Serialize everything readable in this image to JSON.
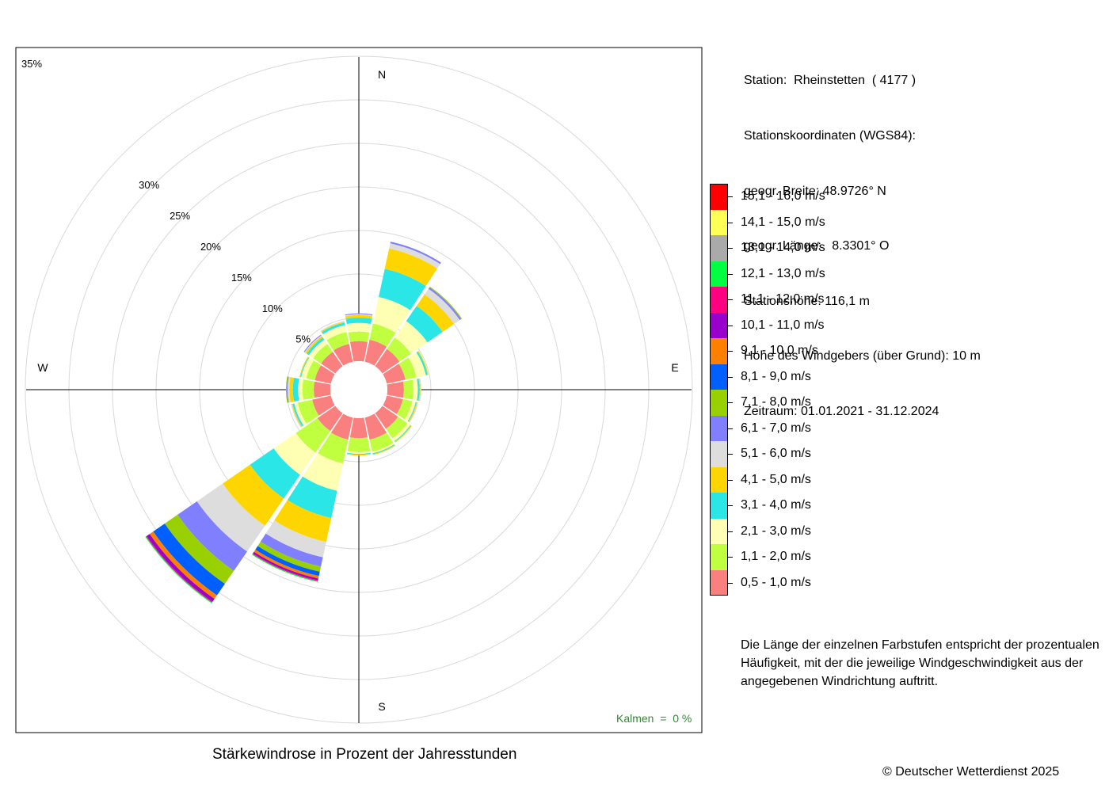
{
  "chart_data": {
    "type": "windrose",
    "title": "Stärkewindrose in Prozent der Jahresstunden",
    "directions": [
      "N",
      "NNE",
      "NE",
      "ENE",
      "E",
      "ESE",
      "SE",
      "SSE",
      "S",
      "SSW",
      "SW",
      "WSW",
      "W",
      "WNW",
      "NW",
      "NNW"
    ],
    "direction_angles_deg": [
      0,
      22.5,
      45,
      67.5,
      90,
      112.5,
      135,
      157.5,
      180,
      202.5,
      225,
      247.5,
      270,
      292.5,
      315,
      337.5
    ],
    "compass_labels": [
      "N",
      "E",
      "S",
      "W"
    ],
    "radial_ticks": [
      {
        "value": 5,
        "label": "5%"
      },
      {
        "value": 10,
        "label": "10%"
      },
      {
        "value": 15,
        "label": "15%"
      },
      {
        "value": 20,
        "label": "20%"
      },
      {
        "value": 25,
        "label": "25%"
      },
      {
        "value": 30,
        "label": "30%"
      },
      {
        "value": 35,
        "label": "35%"
      }
    ],
    "rmax": 35,
    "calm_note": "Kalmen  =  0 %",
    "speed_classes": [
      {
        "label": "0,5 - 1,0 m/s",
        "color": "#fa8080"
      },
      {
        "label": "1,1 - 2,0 m/s",
        "color": "#bfff40"
      },
      {
        "label": "2,1 - 3,0 m/s",
        "color": "#ffffb3"
      },
      {
        "label": "3,1 - 4,0 m/s",
        "color": "#2ae6e6"
      },
      {
        "label": "4,1 - 5,0 m/s",
        "color": "#ffd500"
      },
      {
        "label": "5,1 - 6,0 m/s",
        "color": "#dddddd"
      },
      {
        "label": "6,1 - 7,0 m/s",
        "color": "#8080ff"
      },
      {
        "label": "7,1 - 8,0 m/s",
        "color": "#99d100"
      },
      {
        "label": "8,1 - 9,0 m/s",
        "color": "#0060ff"
      },
      {
        "label": "9,1 - 10,0 m/s",
        "color": "#ff8000"
      },
      {
        "label": "10,1 - 11,0 m/s",
        "color": "#9900cc"
      },
      {
        "label": "11,1 - 12,0 m/s",
        "color": "#ff0080"
      },
      {
        "label": "12,1 - 13,0 m/s",
        "color": "#00ff40"
      },
      {
        "label": "13,1 - 14,0 m/s",
        "color": "#aaaaaa"
      },
      {
        "label": "14,1 - 15,0 m/s",
        "color": "#ffff55"
      },
      {
        "label": "15,1 - 16,0 m/s",
        "color": "#ff0000"
      }
    ],
    "series": [
      {
        "direction": "N",
        "values": [
          2.3,
          1.1,
          1.0,
          0.6,
          0.3,
          0.1,
          0.1,
          0,
          0,
          0,
          0,
          0,
          0,
          0,
          0,
          0
        ]
      },
      {
        "direction": "NNE",
        "values": [
          2.6,
          1.9,
          3.1,
          3.3,
          2.4,
          0.6,
          0.2,
          0,
          0,
          0,
          0,
          0,
          0,
          0,
          0,
          0
        ]
      },
      {
        "direction": "NE",
        "values": [
          2.4,
          1.6,
          2.3,
          2.1,
          1.6,
          0.8,
          0.2,
          0.1,
          0,
          0,
          0,
          0,
          0,
          0,
          0,
          0
        ]
      },
      {
        "direction": "ENE",
        "values": [
          2.2,
          1.3,
          1.1,
          0.2,
          0.1,
          0,
          0,
          0,
          0,
          0,
          0,
          0,
          0,
          0,
          0,
          0
        ]
      },
      {
        "direction": "E",
        "values": [
          1.9,
          1.1,
          0.5,
          0.2,
          0.1,
          0.1,
          0,
          0,
          0,
          0,
          0,
          0,
          0,
          0,
          0,
          0
        ]
      },
      {
        "direction": "ESE",
        "values": [
          1.9,
          1.1,
          0.4,
          0.1,
          0.1,
          0.1,
          0,
          0,
          0,
          0,
          0,
          0,
          0,
          0,
          0,
          0
        ]
      },
      {
        "direction": "SE",
        "values": [
          2.2,
          1.3,
          0.4,
          0.1,
          0.1,
          0,
          0,
          0,
          0,
          0,
          0,
          0,
          0,
          0,
          0,
          0
        ]
      },
      {
        "direction": "SSE",
        "values": [
          2.6,
          1.4,
          0.2,
          0.1,
          0.1,
          0,
          0,
          0,
          0,
          0,
          0,
          0,
          0,
          0,
          0,
          0
        ]
      },
      {
        "direction": "S",
        "values": [
          2.3,
          1.6,
          0.2,
          0.1,
          0.1,
          0,
          0,
          0,
          0,
          0,
          0,
          0,
          0,
          0,
          0,
          0
        ]
      },
      {
        "direction": "SSW",
        "values": [
          2.6,
          2.8,
          3.2,
          3.2,
          2.8,
          1.8,
          1.1,
          0.6,
          0.5,
          0.3,
          0.2,
          0.1,
          0.1,
          0,
          0,
          0
        ]
      },
      {
        "direction": "SW",
        "values": [
          2.5,
          3.0,
          3.1,
          3.3,
          3.8,
          3.6,
          2.7,
          1.8,
          1.6,
          0.5,
          0.4,
          0.1,
          0.1,
          0,
          0,
          0
        ]
      },
      {
        "direction": "WSW",
        "values": [
          2.2,
          1.7,
          0.4,
          0.2,
          0.1,
          0.1,
          0,
          0,
          0,
          0,
          0,
          0,
          0,
          0,
          0,
          0
        ]
      },
      {
        "direction": "W",
        "values": [
          1.9,
          1.3,
          0.5,
          0.6,
          0.4,
          0.2,
          0.1,
          0.1,
          0,
          0,
          0,
          0,
          0,
          0,
          0,
          0
        ]
      },
      {
        "direction": "WNW",
        "values": [
          1.9,
          1.0,
          0.6,
          0.1,
          0.1,
          0,
          0,
          0,
          0,
          0,
          0,
          0,
          0,
          0,
          0,
          0
        ]
      },
      {
        "direction": "NW",
        "values": [
          2.0,
          1.1,
          0.6,
          0.3,
          0.2,
          0.1,
          0.1,
          0,
          0,
          0,
          0,
          0,
          0,
          0,
          0,
          0
        ]
      },
      {
        "direction": "NNW",
        "values": [
          2.1,
          1.4,
          0.8,
          0.3,
          0.1,
          0.1,
          0,
          0,
          0,
          0,
          0,
          0,
          0,
          0,
          0,
          0
        ]
      }
    ]
  },
  "station": {
    "name_line": "Station:  Rheinstetten  ( 4177 )",
    "coords_label": "Stationskoordinaten (WGS84):",
    "latitude_line": "geogr. Breite: 48.9726° N",
    "longitude_line": "geogr. Länge:   8.3301° O",
    "elevation_line": "Stationshöhe: 116,1 m",
    "sensor_height_line": "Höhe des Windgebers (über Grund): 10 m",
    "period_line": "Zeitraum: 01.01.2021 - 31.12.2024"
  },
  "note": "Die Länge der einzelnen Farbstufen entspricht der prozentualen Häufigkeit, mit der die jeweilige Windgeschwindigkeit aus der angegebenen Windrichtung auftritt.",
  "copyright": "© Deutscher Wetterdienst  2025"
}
